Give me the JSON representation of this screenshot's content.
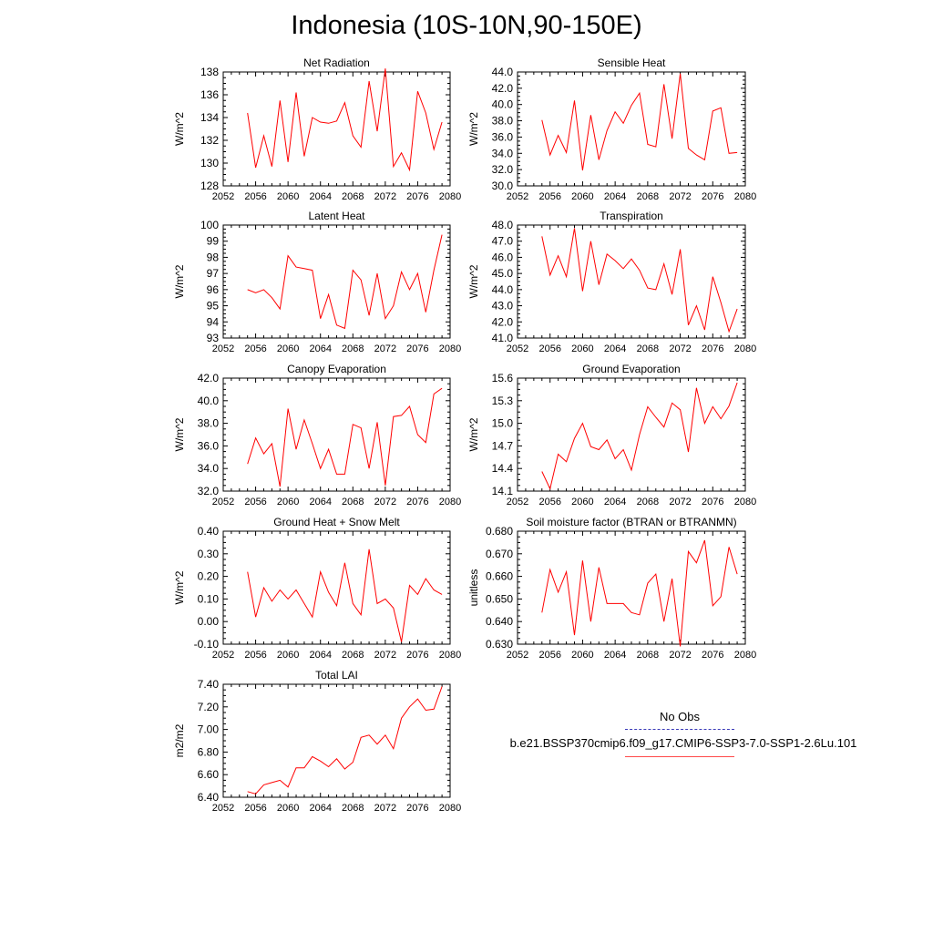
{
  "figure": {
    "title": "Indonesia (10S-10N,90-150E)",
    "legend": {
      "obs_label": "No Obs",
      "obs_color": "#3a3ab8",
      "case_label": "b.e21.BSSP370cmip6.f09_g17.CMIP6-SSP3-7.0-SSP1-2.6Lu.101",
      "case_color": "#ff0000"
    }
  },
  "chart_data": [
    {
      "type": "line",
      "title": "Net Radiation",
      "ylabel": "W/m^2",
      "xlim": [
        2052,
        2080
      ],
      "xticks": [
        2052,
        2056,
        2060,
        2064,
        2068,
        2072,
        2076,
        2080
      ],
      "ylim": [
        128,
        138
      ],
      "yticks": [
        "128",
        "130",
        "132",
        "134",
        "136",
        "138"
      ],
      "x": [
        2055,
        2056,
        2057,
        2058,
        2059,
        2060,
        2061,
        2062,
        2063,
        2064,
        2065,
        2066,
        2067,
        2068,
        2069,
        2070,
        2071,
        2072,
        2073,
        2074,
        2075,
        2076,
        2077,
        2078,
        2079
      ],
      "series": [
        {
          "values": [
            134.4,
            129.6,
            132.4,
            129.7,
            135.5,
            130.1,
            136.2,
            130.6,
            134.0,
            133.6,
            133.5,
            133.7,
            135.3,
            132.4,
            131.4,
            137.2,
            132.8,
            138.3,
            129.7,
            130.9,
            129.4,
            136.3,
            134.4,
            131.2,
            133.6
          ]
        }
      ]
    },
    {
      "type": "line",
      "title": "Sensible Heat",
      "ylabel": "W/m^2",
      "xlim": [
        2052,
        2080
      ],
      "xticks": [
        2052,
        2056,
        2060,
        2064,
        2068,
        2072,
        2076,
        2080
      ],
      "ylim": [
        30,
        44
      ],
      "yticks": [
        "30.0",
        "32.0",
        "34.0",
        "36.0",
        "38.0",
        "40.0",
        "42.0",
        "44.0"
      ],
      "x": [
        2055,
        2056,
        2057,
        2058,
        2059,
        2060,
        2061,
        2062,
        2063,
        2064,
        2065,
        2066,
        2067,
        2068,
        2069,
        2070,
        2071,
        2072,
        2073,
        2074,
        2075,
        2076,
        2077,
        2078,
        2079
      ],
      "series": [
        {
          "values": [
            38.1,
            33.8,
            36.2,
            34.1,
            40.5,
            31.9,
            38.7,
            33.2,
            36.8,
            39.1,
            37.7,
            39.9,
            41.4,
            35.1,
            34.8,
            42.5,
            35.8,
            43.8,
            34.6,
            33.8,
            33.2,
            39.2,
            39.6,
            34.0,
            34.1
          ]
        }
      ]
    },
    {
      "type": "line",
      "title": "Latent Heat",
      "ylabel": "W/m^2",
      "xlim": [
        2052,
        2080
      ],
      "xticks": [
        2052,
        2056,
        2060,
        2064,
        2068,
        2072,
        2076,
        2080
      ],
      "ylim": [
        93,
        100
      ],
      "yticks": [
        "93",
        "94",
        "95",
        "96",
        "97",
        "98",
        "99",
        "100"
      ],
      "x": [
        2055,
        2056,
        2057,
        2058,
        2059,
        2060,
        2061,
        2062,
        2063,
        2064,
        2065,
        2066,
        2067,
        2068,
        2069,
        2070,
        2071,
        2072,
        2073,
        2074,
        2075,
        2076,
        2077,
        2078,
        2079
      ],
      "series": [
        {
          "values": [
            96.0,
            95.8,
            96.0,
            95.5,
            94.8,
            98.1,
            97.4,
            97.3,
            97.2,
            94.2,
            95.7,
            93.8,
            93.6,
            97.2,
            96.6,
            94.4,
            97.0,
            94.2,
            95.0,
            97.1,
            96.0,
            97.0,
            94.6,
            97.2,
            99.4
          ]
        }
      ]
    },
    {
      "type": "line",
      "title": "Transpiration",
      "ylabel": "W/m^2",
      "xlim": [
        2052,
        2080
      ],
      "xticks": [
        2052,
        2056,
        2060,
        2064,
        2068,
        2072,
        2076,
        2080
      ],
      "ylim": [
        41,
        48
      ],
      "yticks": [
        "41.0",
        "42.0",
        "43.0",
        "44.0",
        "45.0",
        "46.0",
        "47.0",
        "48.0"
      ],
      "x": [
        2055,
        2056,
        2057,
        2058,
        2059,
        2060,
        2061,
        2062,
        2063,
        2064,
        2065,
        2066,
        2067,
        2068,
        2069,
        2070,
        2071,
        2072,
        2073,
        2074,
        2075,
        2076,
        2077,
        2078,
        2079
      ],
      "series": [
        {
          "values": [
            47.3,
            44.9,
            46.1,
            44.8,
            47.8,
            43.9,
            47.0,
            44.3,
            46.2,
            45.8,
            45.3,
            45.9,
            45.2,
            44.1,
            44.0,
            45.6,
            43.7,
            46.5,
            41.8,
            43.0,
            41.5,
            44.8,
            43.2,
            41.4,
            42.8
          ]
        }
      ]
    },
    {
      "type": "line",
      "title": "Canopy Evaporation",
      "ylabel": "W/m^2",
      "xlim": [
        2052,
        2080
      ],
      "xticks": [
        2052,
        2056,
        2060,
        2064,
        2068,
        2072,
        2076,
        2080
      ],
      "ylim": [
        32,
        42
      ],
      "yticks": [
        "32.0",
        "34.0",
        "36.0",
        "38.0",
        "40.0",
        "42.0"
      ],
      "x": [
        2055,
        2056,
        2057,
        2058,
        2059,
        2060,
        2061,
        2062,
        2063,
        2064,
        2065,
        2066,
        2067,
        2068,
        2069,
        2070,
        2071,
        2072,
        2073,
        2074,
        2075,
        2076,
        2077,
        2078,
        2079
      ],
      "series": [
        {
          "values": [
            34.4,
            36.7,
            35.3,
            36.2,
            32.4,
            39.3,
            35.7,
            38.3,
            36.2,
            34.0,
            35.7,
            33.5,
            33.5,
            37.9,
            37.6,
            34.0,
            38.1,
            32.5,
            38.6,
            38.7,
            39.5,
            37.0,
            36.3,
            40.6,
            41.1
          ]
        }
      ]
    },
    {
      "type": "line",
      "title": "Ground Evaporation",
      "ylabel": "W/m^2",
      "xlim": [
        2052,
        2080
      ],
      "xticks": [
        2052,
        2056,
        2060,
        2064,
        2068,
        2072,
        2076,
        2080
      ],
      "ylim": [
        14.1,
        15.6
      ],
      "yticks": [
        "14.1",
        "14.4",
        "14.7",
        "15.0",
        "15.3",
        "15.6"
      ],
      "x": [
        2055,
        2056,
        2057,
        2058,
        2059,
        2060,
        2061,
        2062,
        2063,
        2064,
        2065,
        2066,
        2067,
        2068,
        2069,
        2070,
        2071,
        2072,
        2073,
        2074,
        2075,
        2076,
        2077,
        2078,
        2079
      ],
      "series": [
        {
          "values": [
            14.36,
            14.13,
            14.59,
            14.49,
            14.8,
            15.0,
            14.69,
            14.65,
            14.78,
            14.53,
            14.65,
            14.38,
            14.85,
            15.22,
            15.08,
            14.95,
            15.27,
            15.18,
            14.62,
            15.47,
            15.0,
            15.22,
            15.06,
            15.23,
            15.54
          ]
        }
      ]
    },
    {
      "type": "line",
      "title": "Ground Heat + Snow Melt",
      "ylabel": "W/m^2",
      "xlim": [
        2052,
        2080
      ],
      "xticks": [
        2052,
        2056,
        2060,
        2064,
        2068,
        2072,
        2076,
        2080
      ],
      "ylim": [
        -0.1,
        0.4
      ],
      "yticks": [
        "-0.10",
        "0.00",
        "0.10",
        "0.20",
        "0.30",
        "0.40"
      ],
      "x": [
        2055,
        2056,
        2057,
        2058,
        2059,
        2060,
        2061,
        2062,
        2063,
        2064,
        2065,
        2066,
        2067,
        2068,
        2069,
        2070,
        2071,
        2072,
        2073,
        2074,
        2075,
        2076,
        2077,
        2078,
        2079
      ],
      "series": [
        {
          "values": [
            0.22,
            0.02,
            0.15,
            0.09,
            0.14,
            0.1,
            0.14,
            0.08,
            0.02,
            0.22,
            0.13,
            0.07,
            0.26,
            0.08,
            0.03,
            0.32,
            0.08,
            0.1,
            0.06,
            -0.09,
            0.16,
            0.12,
            0.19,
            0.14,
            0.12
          ]
        }
      ]
    },
    {
      "type": "line",
      "title": "Soil moisture factor (BTRAN or BTRANMN)",
      "ylabel": "unitless",
      "xlim": [
        2052,
        2080
      ],
      "xticks": [
        2052,
        2056,
        2060,
        2064,
        2068,
        2072,
        2076,
        2080
      ],
      "ylim": [
        0.63,
        0.68
      ],
      "yticks": [
        "0.630",
        "0.640",
        "0.650",
        "0.660",
        "0.670",
        "0.680"
      ],
      "x": [
        2055,
        2056,
        2057,
        2058,
        2059,
        2060,
        2061,
        2062,
        2063,
        2064,
        2065,
        2066,
        2067,
        2068,
        2069,
        2070,
        2071,
        2072,
        2073,
        2074,
        2075,
        2076,
        2077,
        2078,
        2079
      ],
      "series": [
        {
          "values": [
            0.644,
            0.663,
            0.653,
            0.662,
            0.634,
            0.667,
            0.64,
            0.664,
            0.648,
            0.648,
            0.648,
            0.644,
            0.643,
            0.657,
            0.661,
            0.64,
            0.659,
            0.629,
            0.671,
            0.666,
            0.676,
            0.647,
            0.651,
            0.673,
            0.661
          ]
        }
      ]
    },
    {
      "type": "line",
      "title": "Total LAI",
      "ylabel": "m2/m2",
      "xlim": [
        2052,
        2080
      ],
      "xticks": [
        2052,
        2056,
        2060,
        2064,
        2068,
        2072,
        2076,
        2080
      ],
      "ylim": [
        6.4,
        7.4
      ],
      "yticks": [
        "6.40",
        "6.60",
        "6.80",
        "7.00",
        "7.20",
        "7.40"
      ],
      "x": [
        2055,
        2056,
        2057,
        2058,
        2059,
        2060,
        2061,
        2062,
        2063,
        2064,
        2065,
        2066,
        2067,
        2068,
        2069,
        2070,
        2071,
        2072,
        2073,
        2074,
        2075,
        2076,
        2077,
        2078,
        2079
      ],
      "series": [
        {
          "values": [
            6.45,
            6.43,
            6.51,
            6.53,
            6.55,
            6.49,
            6.66,
            6.66,
            6.76,
            6.72,
            6.67,
            6.74,
            6.65,
            6.71,
            6.93,
            6.95,
            6.87,
            6.95,
            6.83,
            7.1,
            7.2,
            7.27,
            7.17,
            7.18,
            7.38
          ]
        }
      ]
    }
  ]
}
